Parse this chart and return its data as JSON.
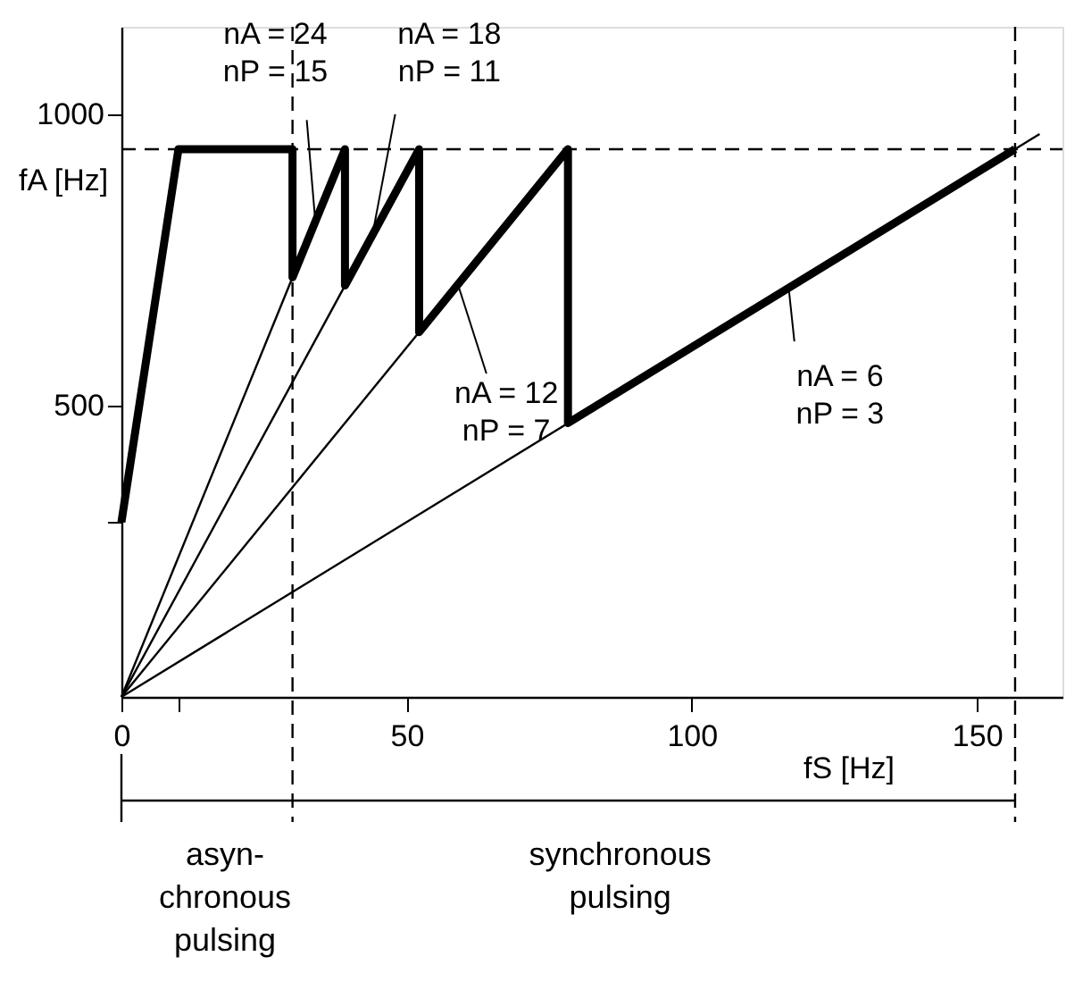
{
  "chart_data": {
    "type": "line",
    "xlabel": "fS [Hz]",
    "ylabel": "fA [Hz]",
    "xlim": [
      0,
      165
    ],
    "ylim": [
      0,
      1150
    ],
    "xticks": [
      0,
      {
        "value": 10,
        "label": null
      },
      50,
      100,
      150
    ],
    "yticks": [
      {
        "value": 300,
        "label": null
      },
      500,
      1000
    ],
    "grid": false,
    "marker": "none",
    "line_style": "solid",
    "series": [
      {
        "color": "#000000",
        "x": [
          0,
          10,
          30,
          30,
          39.2,
          39.2,
          52.2,
          52.2,
          78.3,
          78.3,
          156.7
        ],
        "values": [
          300,
          940,
          940,
          720,
          940,
          706,
          940,
          626,
          940,
          470,
          940
        ]
      },
      {
        "color": "#000000",
        "x": [
          0,
          30
        ],
        "values": [
          0,
          720
        ]
      },
      {
        "color": "#000000",
        "x": [
          0,
          39.2
        ],
        "values": [
          0,
          706
        ]
      },
      {
        "color": "#000000",
        "x": [
          0,
          52.2
        ],
        "values": [
          0,
          626
        ]
      },
      {
        "color": "#000000",
        "x": [
          0,
          161
        ],
        "values": [
          0,
          966
        ]
      }
    ],
    "ref_lines": [
      {
        "axis": "x",
        "value": 30,
        "line_style": "dashed"
      },
      {
        "axis": "x",
        "value": 156.7,
        "line_style": "dashed"
      },
      {
        "axis": "y",
        "value": 940,
        "line_style": "dashed"
      }
    ],
    "annotations": [
      "asyn-\nchronous\npulsing",
      "synchronous\npulsing",
      {
        "text": "nA = 24\nnP = 15",
        "x": 34,
        "y": 816
      },
      {
        "text": "nA = 18\nnP = 11",
        "x": 44,
        "y": 792
      },
      {
        "text": "nA = 12\nnP = 7",
        "x": 59,
        "y": 708
      },
      {
        "text": "nA = 6\nnP = 3",
        "x": 117,
        "y": 702
      }
    ]
  }
}
